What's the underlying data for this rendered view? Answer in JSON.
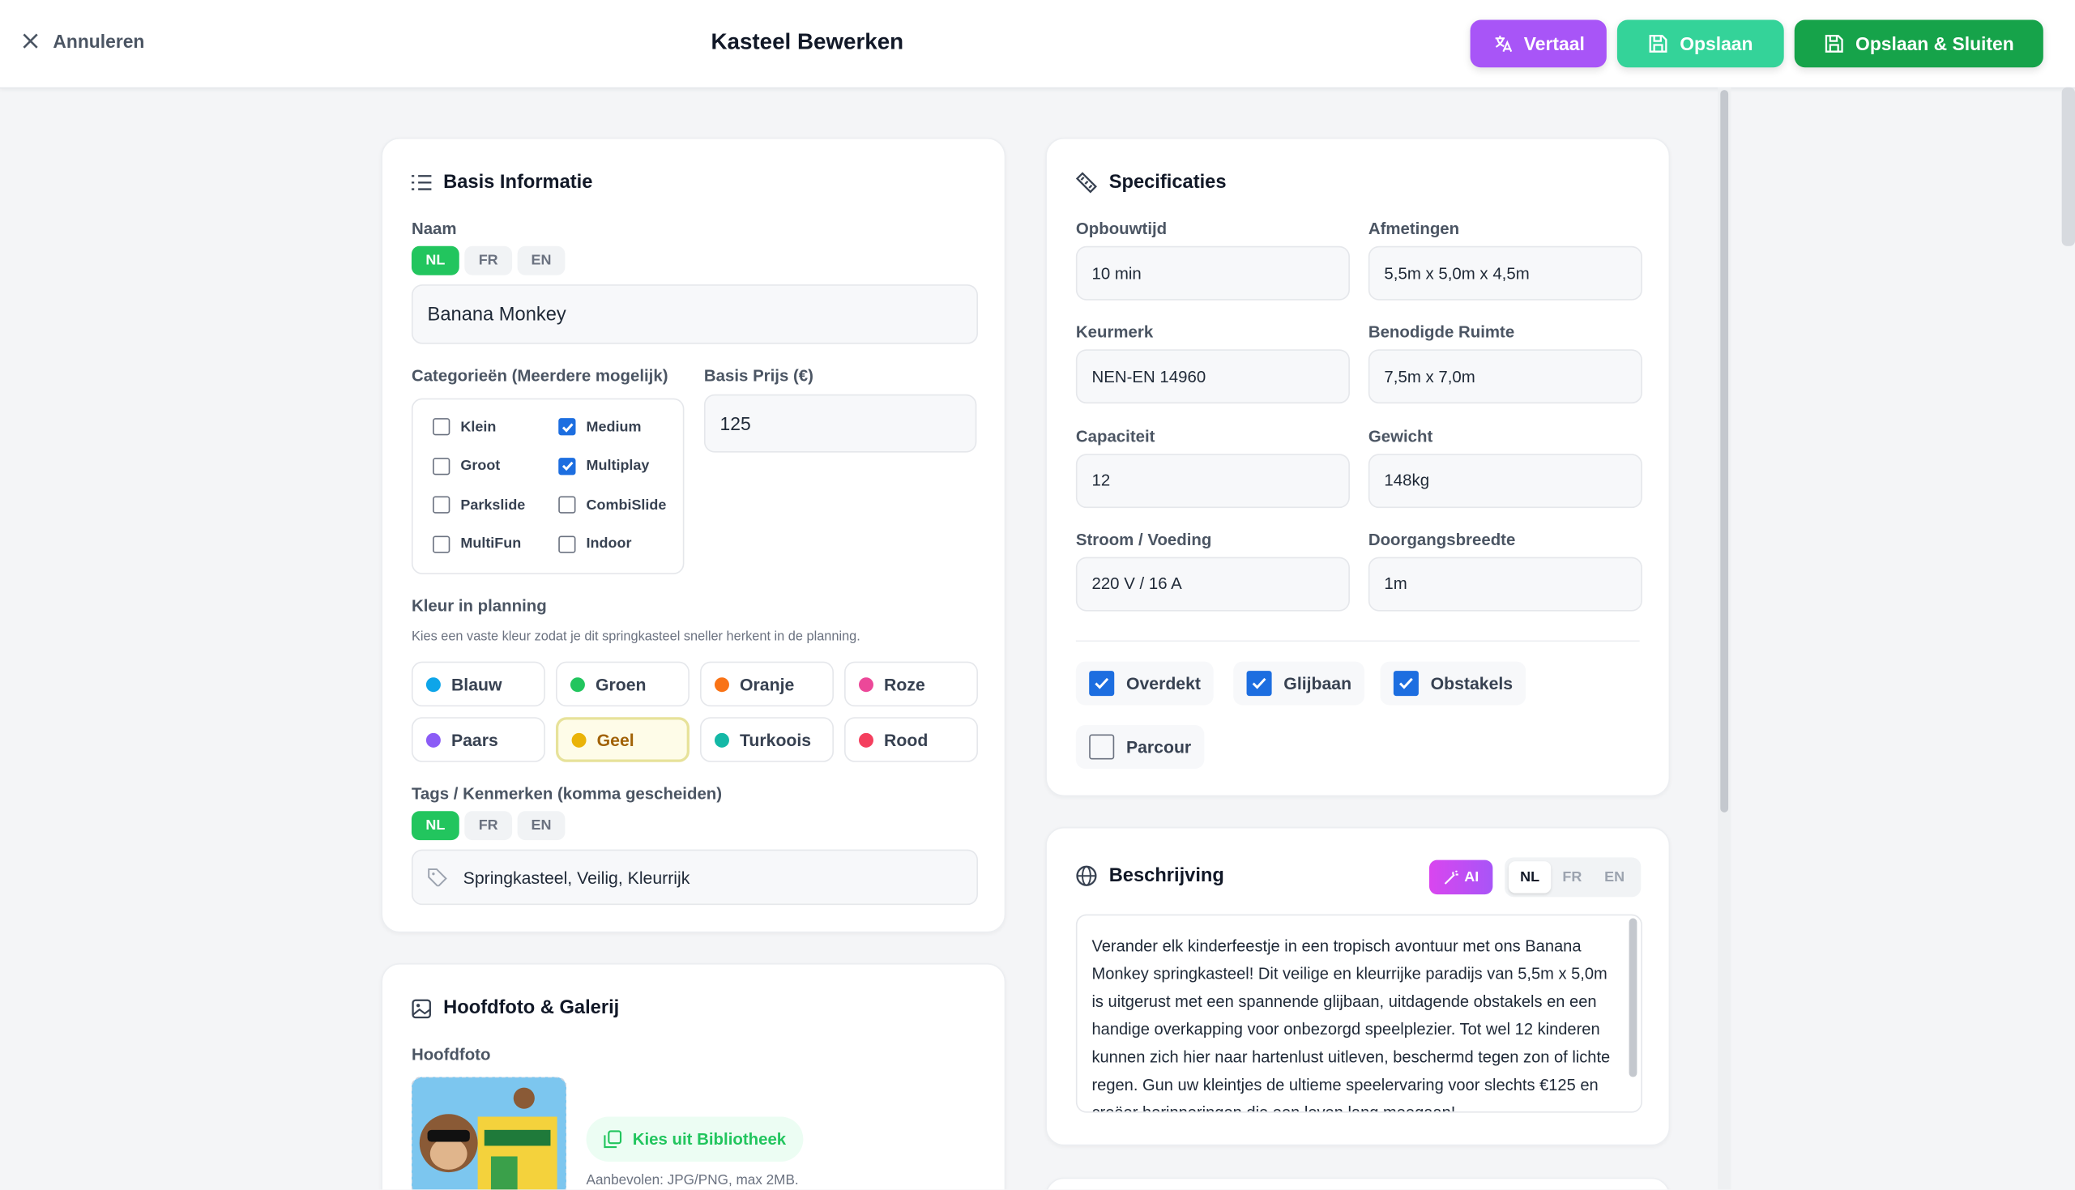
{
  "header": {
    "cancel": "Annuleren",
    "title": "Kasteel Bewerken",
    "buttons": [
      "Vertaal",
      "Opslaan",
      "Opslaan & Sluiten"
    ]
  },
  "basis": {
    "title": "Basis Informatie",
    "name_label": "Naam",
    "name_langs": [
      "NL",
      "FR",
      "EN"
    ],
    "name_value": "Banana Monkey",
    "categories_label": "Categorieën (Meerdere mogelijk)",
    "categories": [
      {
        "label": "Klein",
        "checked": false
      },
      {
        "label": "Medium",
        "checked": true
      },
      {
        "label": "Groot",
        "checked": false
      },
      {
        "label": "Multiplay",
        "checked": true
      },
      {
        "label": "Parkslide",
        "checked": false
      },
      {
        "label": "CombiSlide",
        "checked": false
      },
      {
        "label": "MultiFun",
        "checked": false
      },
      {
        "label": "Indoor",
        "checked": false
      }
    ],
    "price_label": "Basis Prijs (€)",
    "price_value": "125",
    "color_label": "Kleur in planning",
    "color_hint": "Kies een vaste kleur zodat je dit springkasteel sneller herkent in de planning.",
    "colors": [
      {
        "label": "Blauw",
        "color": "#0ea5e9",
        "selected": false
      },
      {
        "label": "Groen",
        "color": "#22c55e",
        "selected": false
      },
      {
        "label": "Oranje",
        "color": "#f97316",
        "selected": false
      },
      {
        "label": "Roze",
        "color": "#ec4899",
        "selected": false
      },
      {
        "label": "Paars",
        "color": "#8b5cf6",
        "selected": false
      },
      {
        "label": "Geel",
        "color": "#eab308",
        "selected": true
      },
      {
        "label": "Turkoois",
        "color": "#14b8a6",
        "selected": false
      },
      {
        "label": "Rood",
        "color": "#f43f5e",
        "selected": false
      }
    ],
    "tags_label": "Tags / Kenmerken (komma gescheiden)",
    "tags_langs": [
      "NL",
      "FR",
      "EN"
    ],
    "tags_value": "Springkasteel, Veilig, Kleurrijk"
  },
  "photo": {
    "title": "Hoofdfoto & Galerij",
    "label": "Hoofdfoto",
    "button": "Kies uit Bibliotheek",
    "hint": "Aanbevolen: JPG/PNG, max 2MB."
  },
  "specs": {
    "title": "Specificaties",
    "fields": [
      {
        "label": "Opbouwtijd",
        "value": "10 min"
      },
      {
        "label": "Afmetingen",
        "value": "5,5m x 5,0m x 4,5m"
      },
      {
        "label": "Keurmerk",
        "value": "NEN-EN 14960"
      },
      {
        "label": "Benodigde Ruimte",
        "value": "7,5m x 7,0m"
      },
      {
        "label": "Capaciteit",
        "value": "12"
      },
      {
        "label": "Gewicht",
        "value": "148kg"
      },
      {
        "label": "Stroom / Voeding",
        "value": "220 V / 16 A"
      },
      {
        "label": "Doorgangsbreedte",
        "value": "1m"
      }
    ],
    "options": [
      {
        "label": "Overdekt",
        "checked": true
      },
      {
        "label": "Glijbaan",
        "checked": true
      },
      {
        "label": "Obstakels",
        "checked": true
      },
      {
        "label": "Parcour",
        "checked": false
      }
    ]
  },
  "description": {
    "title": "Beschrijving",
    "ai": "AI",
    "langs": [
      "NL",
      "FR",
      "EN"
    ],
    "text": "Verander elk kinderfeestje in een tropisch avontuur met ons Banana Monkey springkasteel! Dit veilige en kleurrijke paradijs van 5,5m x 5,0m is uitgerust met een spannende glijbaan, uitdagende obstakels en een handige overkapping voor onbezorgd speelplezier. Tot wel 12 kinderen kunnen zich hier naar hartenlust uitleven, beschermd tegen zon of lichte regen. Gun uw kleintjes de ultieme speelervaring voor slechts €125 en creëer herinneringen die een leven lang meegaan!"
  }
}
